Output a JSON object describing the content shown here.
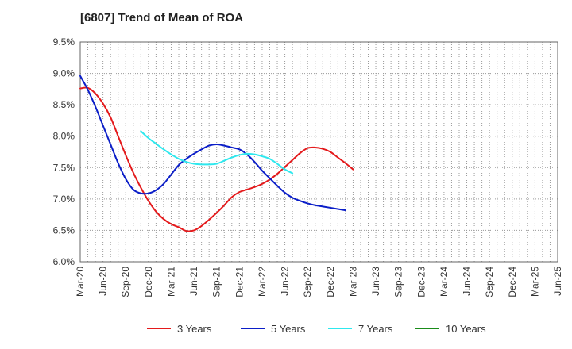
{
  "chart_data": {
    "type": "line",
    "title": "[6807]  Trend of Mean of ROA",
    "xlabel": "",
    "ylabel": "",
    "ylim": [
      6.0,
      9.5
    ],
    "y_ticks": [
      "6.0%",
      "6.5%",
      "7.0%",
      "7.5%",
      "8.0%",
      "8.5%",
      "9.0%",
      "9.5%"
    ],
    "x_tick_labels": [
      "Mar-20",
      "Jun-20",
      "Sep-20",
      "Dec-20",
      "Mar-21",
      "Jun-21",
      "Sep-21",
      "Dec-21",
      "Mar-22",
      "Jun-22",
      "Sep-22",
      "Dec-22",
      "Mar-23",
      "Jun-23",
      "Sep-23",
      "Dec-23",
      "Mar-24",
      "Jun-24",
      "Sep-24",
      "Dec-24",
      "Mar-25",
      "Jun-25"
    ],
    "grid": true,
    "legend_position": "bottom",
    "series": [
      {
        "name": "3 Years",
        "color": "#e41a1c",
        "start_index": 0,
        "values": [
          8.76,
          8.77,
          8.68,
          8.52,
          8.3,
          8.0,
          7.7,
          7.42,
          7.18,
          6.97,
          6.8,
          6.68,
          6.6,
          6.55,
          6.49,
          6.5,
          6.57,
          6.67,
          6.78,
          6.9,
          7.03,
          7.11,
          7.15,
          7.19,
          7.24,
          7.31,
          7.4,
          7.51,
          7.62,
          7.73,
          7.81,
          7.82,
          7.8,
          7.75,
          7.66,
          7.57,
          7.47
        ]
      },
      {
        "name": "5 Years",
        "color": "#0b1ec8",
        "start_index": 0,
        "values": [
          8.96,
          8.74,
          8.47,
          8.17,
          7.87,
          7.57,
          7.32,
          7.15,
          7.09,
          7.09,
          7.14,
          7.24,
          7.39,
          7.54,
          7.64,
          7.72,
          7.79,
          7.85,
          7.87,
          7.85,
          7.82,
          7.79,
          7.71,
          7.59,
          7.45,
          7.33,
          7.21,
          7.1,
          7.02,
          6.97,
          6.93,
          6.9,
          6.88,
          6.86,
          6.84,
          6.82
        ]
      },
      {
        "name": "7 Years",
        "color": "#2ee8ee",
        "start_index": 8,
        "values": [
          8.08,
          7.97,
          7.88,
          7.79,
          7.71,
          7.64,
          7.59,
          7.56,
          7.55,
          7.55,
          7.56,
          7.61,
          7.66,
          7.7,
          7.72,
          7.71,
          7.68,
          7.64,
          7.56,
          7.47,
          7.41
        ]
      },
      {
        "name": "10 Years",
        "color": "#1a8c1a",
        "start_index": 0,
        "values": []
      }
    ]
  }
}
